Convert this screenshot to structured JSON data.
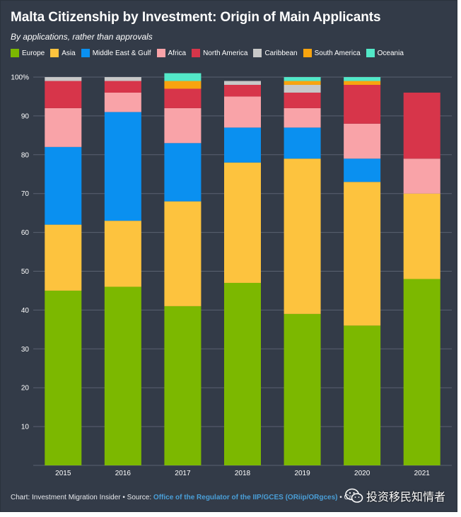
{
  "header": {
    "title": "Malta Citizenship by Investment: Origin of Main Applicants",
    "subtitle": "By applications, rather than approvals"
  },
  "colors": {
    "background": "#333b48",
    "gridline": "#5a6170",
    "axis_text": "#ffffff"
  },
  "chart_data": {
    "type": "bar",
    "stacked": true,
    "categories": [
      "2015",
      "2016",
      "2017",
      "2018",
      "2019",
      "2020",
      "2021"
    ],
    "ylim": [
      0,
      100
    ],
    "yticks": [
      10,
      20,
      30,
      40,
      50,
      60,
      70,
      80,
      90,
      100
    ],
    "ytick_labels": [
      "10",
      "20",
      "30",
      "40",
      "50",
      "60",
      "70",
      "80",
      "90",
      "100%"
    ],
    "grid": true,
    "legend_position": "top",
    "series": [
      {
        "name": "Europe",
        "color": "#7cb800",
        "values": [
          45,
          46,
          41,
          47,
          39,
          36,
          48
        ]
      },
      {
        "name": "Asia",
        "color": "#fdc33e",
        "values": [
          17,
          17,
          27,
          31,
          40,
          37,
          22
        ]
      },
      {
        "name": "Middle East & Gulf",
        "color": "#0a90f0",
        "values": [
          20,
          28,
          15,
          9,
          8,
          6,
          0
        ]
      },
      {
        "name": "Africa",
        "color": "#f9a3a8",
        "values": [
          10,
          5,
          9,
          8,
          5,
          9,
          9
        ]
      },
      {
        "name": "North America",
        "color": "#d7354a",
        "values": [
          7,
          3,
          5,
          3,
          4,
          10,
          17
        ]
      },
      {
        "name": "Caribbean",
        "color": "#c8c8c8",
        "values": [
          1,
          1,
          0,
          1,
          2,
          0,
          0
        ]
      },
      {
        "name": "South America",
        "color": "#f8a40f",
        "values": [
          0,
          0,
          2,
          0,
          1,
          1,
          0
        ]
      },
      {
        "name": "Oceania",
        "color": "#53e8c8",
        "values": [
          0,
          0,
          2,
          0,
          1,
          1,
          0
        ]
      }
    ]
  },
  "footer": {
    "chart_credit": "Chart: Investment Migration Insider • Source: ",
    "source_link": "Office of the Regulator of the IIP/GCES (ORiip/ORgces)",
    "trailing": " • Crea"
  },
  "watermark": {
    "text": "投资移民知情者",
    "icon": "wechat-icon"
  }
}
